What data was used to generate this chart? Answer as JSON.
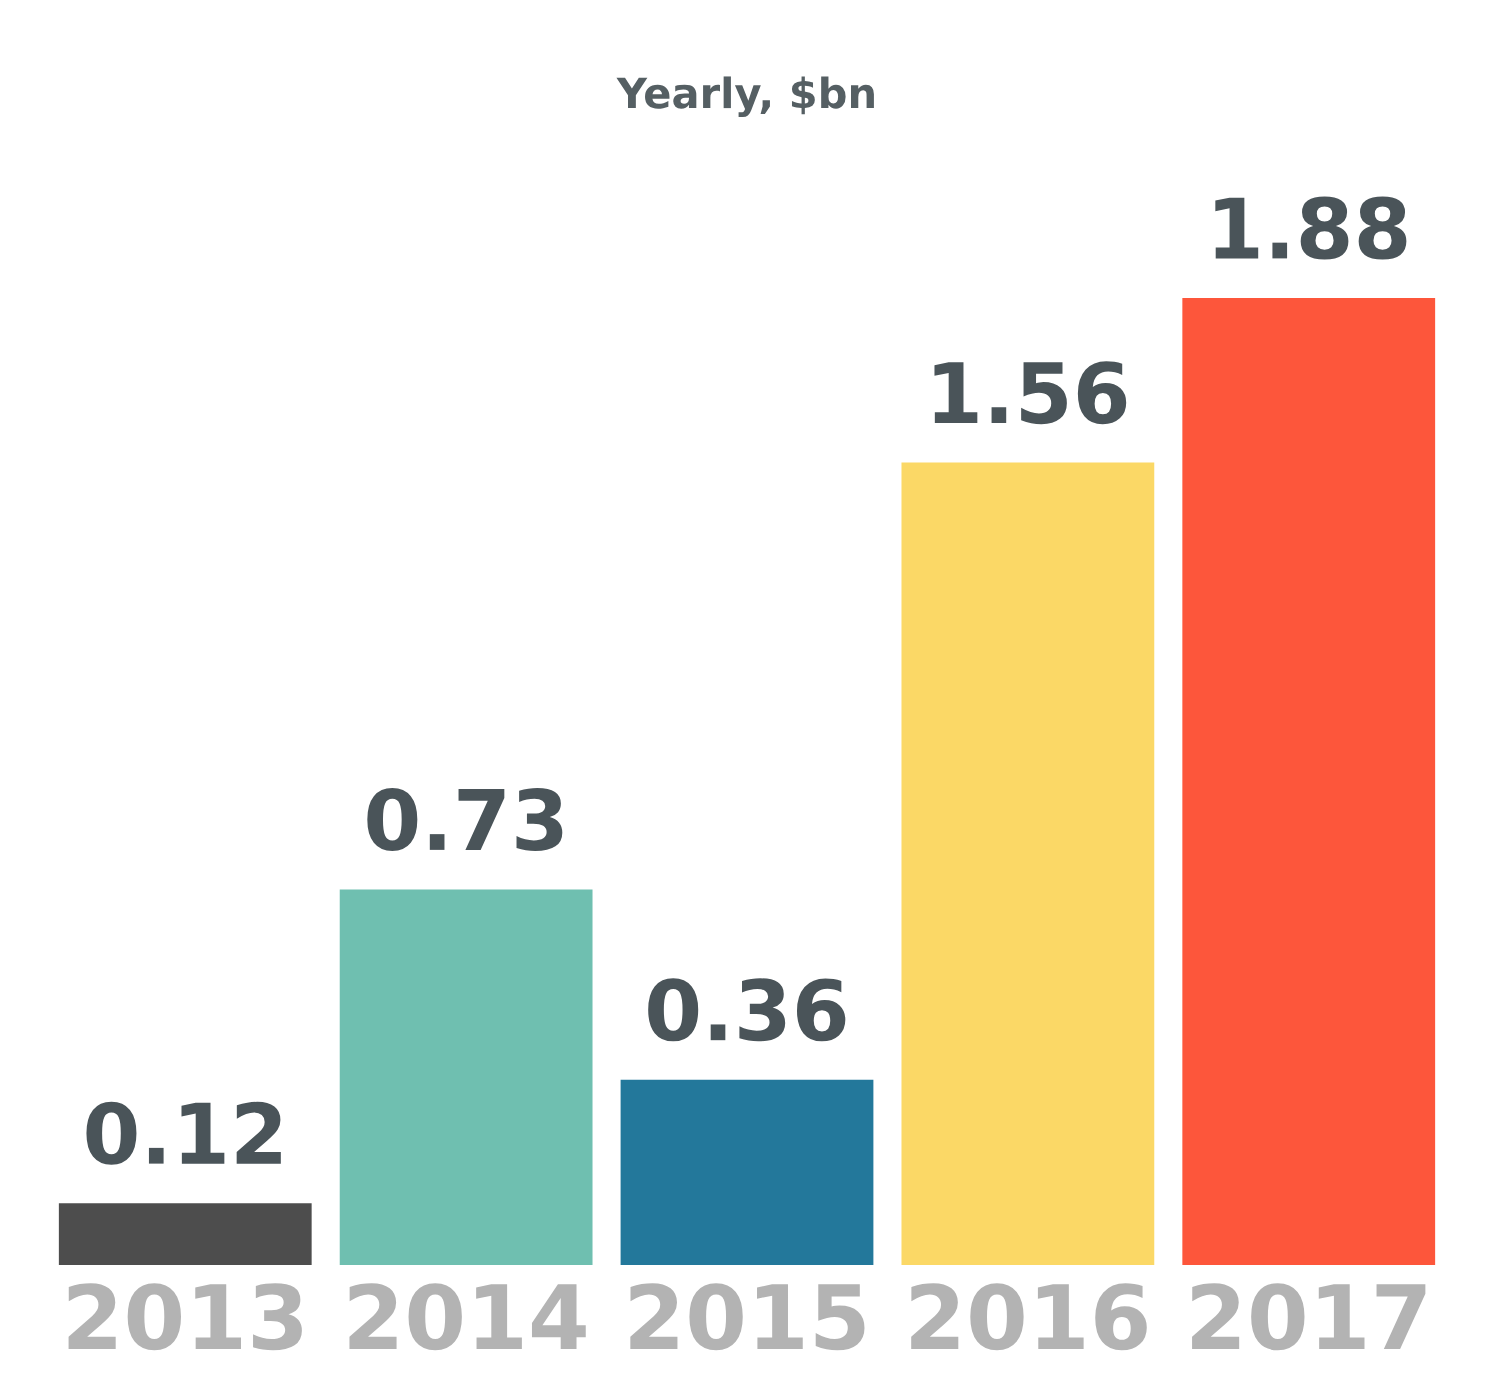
{
  "chart_data": {
    "type": "bar",
    "subtitle": "Yearly, $bn",
    "categories": [
      "2013",
      "2014",
      "2015",
      "2016",
      "2017"
    ],
    "values": [
      0.12,
      0.73,
      0.36,
      1.56,
      1.88
    ],
    "colors": [
      "#4d4d4d",
      "#6fbfb0",
      "#23789b",
      "#fbd866",
      "#fd563b"
    ],
    "data_labels": true,
    "grid": false,
    "legend": false
  }
}
